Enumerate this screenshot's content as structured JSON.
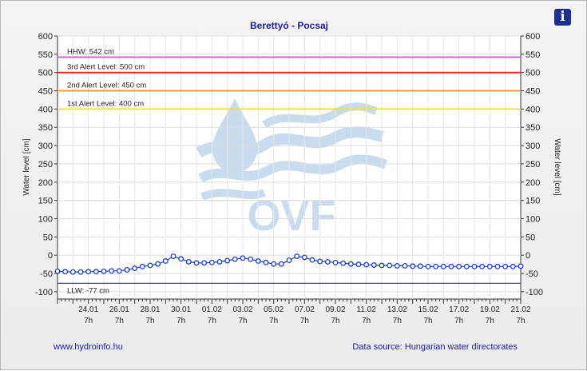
{
  "header": {
    "info_icon": "info-icon"
  },
  "footer": {
    "website": "www.hydroinfo.hu",
    "source": "Data source: Hungarian water directorates"
  },
  "watermark": {
    "text": "OVF"
  },
  "colors": {
    "series": "#1a3fd0",
    "hhw": "#cc66cc",
    "alert3": "#e03020",
    "alert2": "#f0a030",
    "alert1": "#f0e050",
    "llw": "#505080",
    "title": "#1a1aa8"
  },
  "chart_data": {
    "type": "line",
    "title": "Berettyó - Pocsaj",
    "ylabel": "Water level [cm]",
    "ylim": [
      -120,
      600
    ],
    "yticks": [
      600,
      550,
      500,
      450,
      400,
      350,
      300,
      250,
      200,
      150,
      100,
      50,
      0,
      -50,
      -100
    ],
    "grid": true,
    "xticks": [
      {
        "date": "24.01",
        "time": "7h",
        "day": 2
      },
      {
        "date": "26.01",
        "time": "7h",
        "day": 4
      },
      {
        "date": "28.01",
        "time": "7h",
        "day": 6
      },
      {
        "date": "30.01",
        "time": "7h",
        "day": 8
      },
      {
        "date": "01.02",
        "time": "7h",
        "day": 10
      },
      {
        "date": "03.02",
        "time": "7h",
        "day": 12
      },
      {
        "date": "05.02",
        "time": "7h",
        "day": 14
      },
      {
        "date": "07.02",
        "time": "7h",
        "day": 16
      },
      {
        "date": "09.02",
        "time": "7h",
        "day": 18
      },
      {
        "date": "11.02",
        "time": "7h",
        "day": 20
      },
      {
        "date": "13.02",
        "time": "7h",
        "day": 22
      },
      {
        "date": "15.02",
        "time": "7h",
        "day": 24
      },
      {
        "date": "17.02",
        "time": "7h",
        "day": 26
      },
      {
        "date": "19.02",
        "time": "7h",
        "day": 28
      },
      {
        "date": "21.02",
        "time": "7h",
        "day": 30
      }
    ],
    "xdays": 30,
    "reference_lines": [
      {
        "label": "HHW: 542 cm",
        "value": 542,
        "color": "#cc66cc"
      },
      {
        "label": "3rd Alert Level: 500 cm",
        "value": 500,
        "color": "#e03020"
      },
      {
        "label": "2nd Alert Level: 450 cm",
        "value": 450,
        "color": "#f0a030"
      },
      {
        "label": "1st Alert Level: 400 cm",
        "value": 400,
        "color": "#f0e050"
      },
      {
        "label": "LLW: -77 cm",
        "value": -77,
        "color": "#505080"
      }
    ],
    "series": [
      {
        "points": [
          [
            0,
            -44
          ],
          [
            0.5,
            -45
          ],
          [
            1,
            -46
          ],
          [
            1.5,
            -46
          ],
          [
            2,
            -45
          ],
          [
            2.5,
            -45
          ],
          [
            3,
            -44
          ],
          [
            3.5,
            -43
          ],
          [
            4,
            -43
          ],
          [
            4.5,
            -40
          ],
          [
            5,
            -36
          ],
          [
            5.5,
            -31
          ],
          [
            6,
            -28
          ],
          [
            6.5,
            -24
          ],
          [
            7,
            -16
          ],
          [
            7.5,
            -3
          ],
          [
            8,
            -10
          ],
          [
            8.5,
            -18
          ],
          [
            9,
            -21
          ],
          [
            9.5,
            -21
          ],
          [
            10,
            -20
          ],
          [
            10.5,
            -18
          ],
          [
            11,
            -15
          ],
          [
            11.5,
            -11
          ],
          [
            12,
            -8
          ],
          [
            12.5,
            -11
          ],
          [
            13,
            -16
          ],
          [
            13.5,
            -20
          ],
          [
            14,
            -24
          ],
          [
            14.5,
            -24
          ],
          [
            15,
            -14
          ],
          [
            15.5,
            -3
          ],
          [
            16,
            -6
          ],
          [
            16.5,
            -13
          ],
          [
            17,
            -17
          ],
          [
            17.5,
            -18
          ],
          [
            18,
            -20
          ],
          [
            18.5,
            -22
          ],
          [
            19,
            -24
          ],
          [
            19.5,
            -25
          ],
          [
            20,
            -26
          ],
          [
            20.5,
            -27
          ],
          [
            21,
            -28
          ],
          [
            21.5,
            -28
          ],
          [
            22,
            -29
          ],
          [
            22.5,
            -29
          ],
          [
            23,
            -30
          ],
          [
            23.5,
            -30
          ],
          [
            24,
            -31
          ],
          [
            24.5,
            -31
          ],
          [
            25,
            -31
          ],
          [
            25.5,
            -31
          ],
          [
            26,
            -31
          ],
          [
            26.5,
            -31
          ],
          [
            27,
            -31
          ],
          [
            27.5,
            -31
          ],
          [
            28,
            -31
          ],
          [
            28.5,
            -31
          ],
          [
            29,
            -31
          ],
          [
            29.5,
            -31
          ],
          [
            30,
            -30
          ]
        ]
      }
    ]
  }
}
